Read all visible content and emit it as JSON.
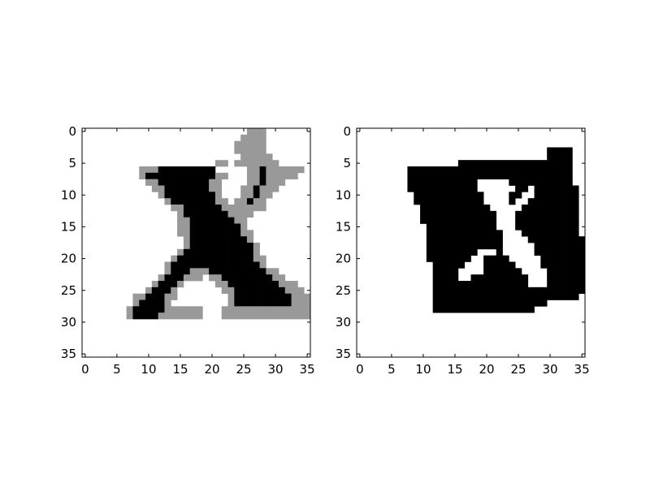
{
  "chart_data": [
    {
      "type": "heatmap",
      "colormap": "gray",
      "grid": false,
      "xlim": [
        0,
        35
      ],
      "ylim": [
        35,
        0
      ],
      "x_ticks": [
        0,
        5,
        10,
        15,
        20,
        25,
        30,
        35
      ],
      "y_ticks": [
        0,
        5,
        10,
        15,
        20,
        25,
        30,
        35
      ],
      "x_tick_labels": [
        "0",
        "5",
        "10",
        "15",
        "20",
        "25",
        "30",
        "35"
      ],
      "y_tick_labels": [
        "0",
        "5",
        "10",
        "15",
        "20",
        "25",
        "30",
        "35"
      ],
      "value_legend": {
        ".": 1.0,
        "l": 0.95,
        "m": 0.6,
        "k": 0.0
      },
      "rows": [
        "..........................mmm.......",
        ".........................mmmm.......",
        "........................mmmmm.......",
        "........................mmmmm.......",
        ".........................mmmmm......",
        ".....................mm.mmmmmmm.....",
        ".........mmmkkkkkkkkk.....mmkmmmmmm.",
        ".........mkkkkkkkkkkkmm...mmkmmmmm..",
        "..........mmkkkkkkkkmm....mmkmmm....",
        "...........mmkkkkkkkmm...mmkmmm.....",
        "............mkkkkkkkkm...mmkmm......",
        ".............mkkkkkkkmm.mmkmm.......",
        "..............mmkkkkkkmmmmmmm.......",
        "...............mkkkkkkkmmmm.........",
        "...............mmkkkkkkkmm..........",
        "...............mmkkkkkkkkm..........",
        "...............mmkkkkkkkkmm.........",
        "................mkkkkkkkkkm.........",
        "................mkkkkkkkkkkm........",
        "...............mkkkkkkkkkkkm........",
        "..............mkkkkkkkkkkkkmm.......",
        ".............mkkkkkkkkkkkkkkm.......",
        ".............mkkkmmmkkkkkkkkkmm.....",
        "............mkkkmmm.mmkkkkkkkkmm....",
        "...........mkkkm.....mmkkkkkkkkmmm..",
        "..........mkkkm.......mmkkkkkkkkmmm.",
        "........mmkkkmm........mkkkkkkkkkmmm",
        "........mkkkkm.........mkkkkkkkkkmmm",
        ".......mkkkkkmmmmmm...mmmmmmmmmmmmmm",
        ".......mkkkkmmmmmmm...mmmmmmmmmmmmmm",
        "....................................",
        "....................................",
        "....................................",
        "....................................",
        "....................................",
        "...................................."
      ]
    },
    {
      "type": "heatmap",
      "colormap": "gray",
      "grid": false,
      "xlim": [
        0,
        35
      ],
      "ylim": [
        35,
        0
      ],
      "x_ticks": [
        0,
        5,
        10,
        15,
        20,
        25,
        30,
        35
      ],
      "y_ticks": [
        0,
        5,
        10,
        15,
        20,
        25,
        30,
        35
      ],
      "x_tick_labels": [
        "0",
        "5",
        "10",
        "15",
        "20",
        "25",
        "30",
        "35"
      ],
      "y_tick_labels": [
        "0",
        "5",
        "10",
        "15",
        "20",
        "25",
        "30",
        "35"
      ],
      "value_legend": {
        ".": 1.0,
        "k": 0.0
      },
      "rows": [
        "....................................",
        "....................................",
        "....................................",
        "..............................kkkk..",
        "..............................kkkk..",
        "................kkkkkkkkkkkkkkkkkk..",
        "........kkkkkkkkkkkkkkkkkkkkkkkkkk..",
        "........kkkkkkkkkkkkkkkkkkkkkkkkkk..",
        "........kkkkkkkkkkk.....kkkkkkkkkk..",
        "........kkkkkkkkkkk......kk.kkkkkkk.",
        ".........kkkkkkkkkkk....kk..kkkkkkk.",
        ".........kkkkkkkkkkk....k..kkkkkkkk.",
        "..........kkkkkkkkkkk.....kkkkkkkkk.",
        "..........kkkkkkkkkkkk...kkkkkkkkkk.",
        "..........kkkkkkkkkkkk...kkkkkkkkkk.",
        "...........kkkkkkkkkkk...kkkkkkkkkk.",
        "...........kkkkkkkkkkkk...kkkkkkkkk.",
        "...........kkkkkkkkkkkk....kkkkkkkkk",
        "...........kkkkkkkkkkkk.....kkkkkkkk",
        "...........kkkkkkkk...k.....kkkkkkkk",
        "...........kkkkkkk..kkkk.....kkkkkkk",
        "............kkkkk...kkkkk....kkkkkkk",
        "............kkkk....kkkkkk....kkkkkk",
        "............kkkk..kkkkkkkkk...kkkkkk",
        "............kkkkkkkkkkkkkkk...kkkkkk",
        "............kkkkkkkkkkkkkkkkkkkkkkkk",
        "............kkkkkkkkkkkkkkkkkkkkkkk.",
        "............kkkkkkkkkkkkkkkkkk......",
        "............kkkkkkkkkkkkkkkk........",
        "....................................",
        "....................................",
        "....................................",
        "....................................",
        "....................................",
        "....................................",
        "...................................."
      ]
    }
  ]
}
